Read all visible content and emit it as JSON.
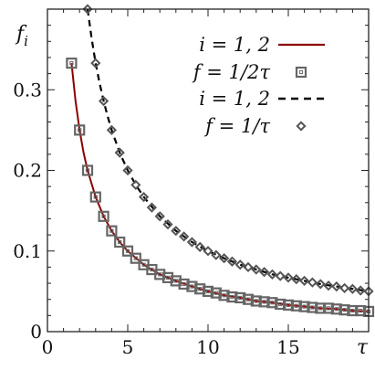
{
  "chart_data": {
    "type": "line",
    "xlabel": "τ",
    "ylabel": "f_i",
    "xlim": [
      0,
      20
    ],
    "ylim": [
      0,
      0.4
    ],
    "xticks": [
      0,
      5,
      10,
      15
    ],
    "xtick_labels": [
      "0",
      "5",
      "10",
      "15"
    ],
    "yticks": [
      0,
      0.1,
      0.2,
      0.3
    ],
    "ytick_labels": [
      "0",
      "0.1",
      "0.2",
      "0.3"
    ],
    "grid": false,
    "legend_position": "top-right",
    "series": [
      {
        "name": "i = 1, 2",
        "kind": "line",
        "style": "solid",
        "color": "#8b0000",
        "x": [
          1.5,
          1.75,
          2,
          2.25,
          2.5,
          3,
          3.5,
          4,
          4.5,
          5,
          6,
          7,
          8,
          9,
          10,
          11,
          12,
          13,
          14,
          15,
          16,
          17,
          18,
          19,
          20
        ],
        "y": [
          0.333,
          0.286,
          0.25,
          0.222,
          0.2,
          0.167,
          0.143,
          0.125,
          0.111,
          0.1,
          0.083,
          0.071,
          0.063,
          0.056,
          0.05,
          0.045,
          0.042,
          0.038,
          0.036,
          0.033,
          0.031,
          0.029,
          0.028,
          0.026,
          0.025
        ]
      },
      {
        "name": "f = 1/2τ",
        "kind": "markers",
        "marker": "square",
        "color": "#666666",
        "x": [
          1.5,
          2,
          2.5,
          3,
          3.5,
          4,
          4.5,
          5,
          5.5,
          6,
          6.5,
          7,
          7.5,
          8,
          8.5,
          9,
          9.5,
          10,
          10.5,
          11,
          11.5,
          12,
          12.5,
          13,
          13.5,
          14,
          14.5,
          15,
          15.5,
          16,
          16.5,
          17,
          17.5,
          18,
          18.5,
          19,
          19.5,
          20
        ],
        "y": [
          0.333,
          0.25,
          0.2,
          0.167,
          0.143,
          0.125,
          0.111,
          0.1,
          0.091,
          0.083,
          0.077,
          0.071,
          0.067,
          0.063,
          0.059,
          0.056,
          0.053,
          0.05,
          0.048,
          0.045,
          0.043,
          0.042,
          0.04,
          0.038,
          0.037,
          0.036,
          0.034,
          0.033,
          0.032,
          0.031,
          0.03,
          0.029,
          0.029,
          0.028,
          0.027,
          0.026,
          0.026,
          0.025
        ]
      },
      {
        "name": "i = 1, 2",
        "kind": "line",
        "style": "dashed",
        "color": "#000000",
        "x": [
          2.5,
          2.75,
          3,
          3.25,
          3.5,
          3.75,
          4,
          4.5,
          5,
          5.5,
          6,
          7,
          8,
          9,
          10,
          11,
          12,
          13,
          14,
          15,
          16,
          17,
          18,
          19,
          20
        ],
        "y": [
          0.4,
          0.364,
          0.333,
          0.308,
          0.286,
          0.267,
          0.25,
          0.222,
          0.2,
          0.182,
          0.167,
          0.143,
          0.125,
          0.111,
          0.1,
          0.091,
          0.083,
          0.077,
          0.071,
          0.067,
          0.063,
          0.059,
          0.056,
          0.053,
          0.05
        ]
      },
      {
        "name": "f = 1/τ",
        "kind": "markers",
        "marker": "diamond",
        "color": "#666666",
        "x": [
          2.5,
          3,
          3.5,
          4,
          4.5,
          5,
          5.5,
          6,
          6.5,
          7,
          7.5,
          8,
          8.5,
          9,
          9.5,
          10,
          10.5,
          11,
          11.5,
          12,
          12.5,
          13,
          13.5,
          14,
          14.5,
          15,
          15.5,
          16,
          16.5,
          17,
          17.5,
          18,
          18.5,
          19,
          19.5,
          20
        ],
        "y": [
          0.4,
          0.333,
          0.286,
          0.25,
          0.222,
          0.2,
          0.182,
          0.167,
          0.154,
          0.143,
          0.133,
          0.125,
          0.118,
          0.111,
          0.105,
          0.1,
          0.095,
          0.091,
          0.087,
          0.083,
          0.08,
          0.077,
          0.074,
          0.071,
          0.069,
          0.067,
          0.065,
          0.063,
          0.061,
          0.059,
          0.057,
          0.056,
          0.054,
          0.053,
          0.051,
          0.05
        ]
      }
    ]
  }
}
